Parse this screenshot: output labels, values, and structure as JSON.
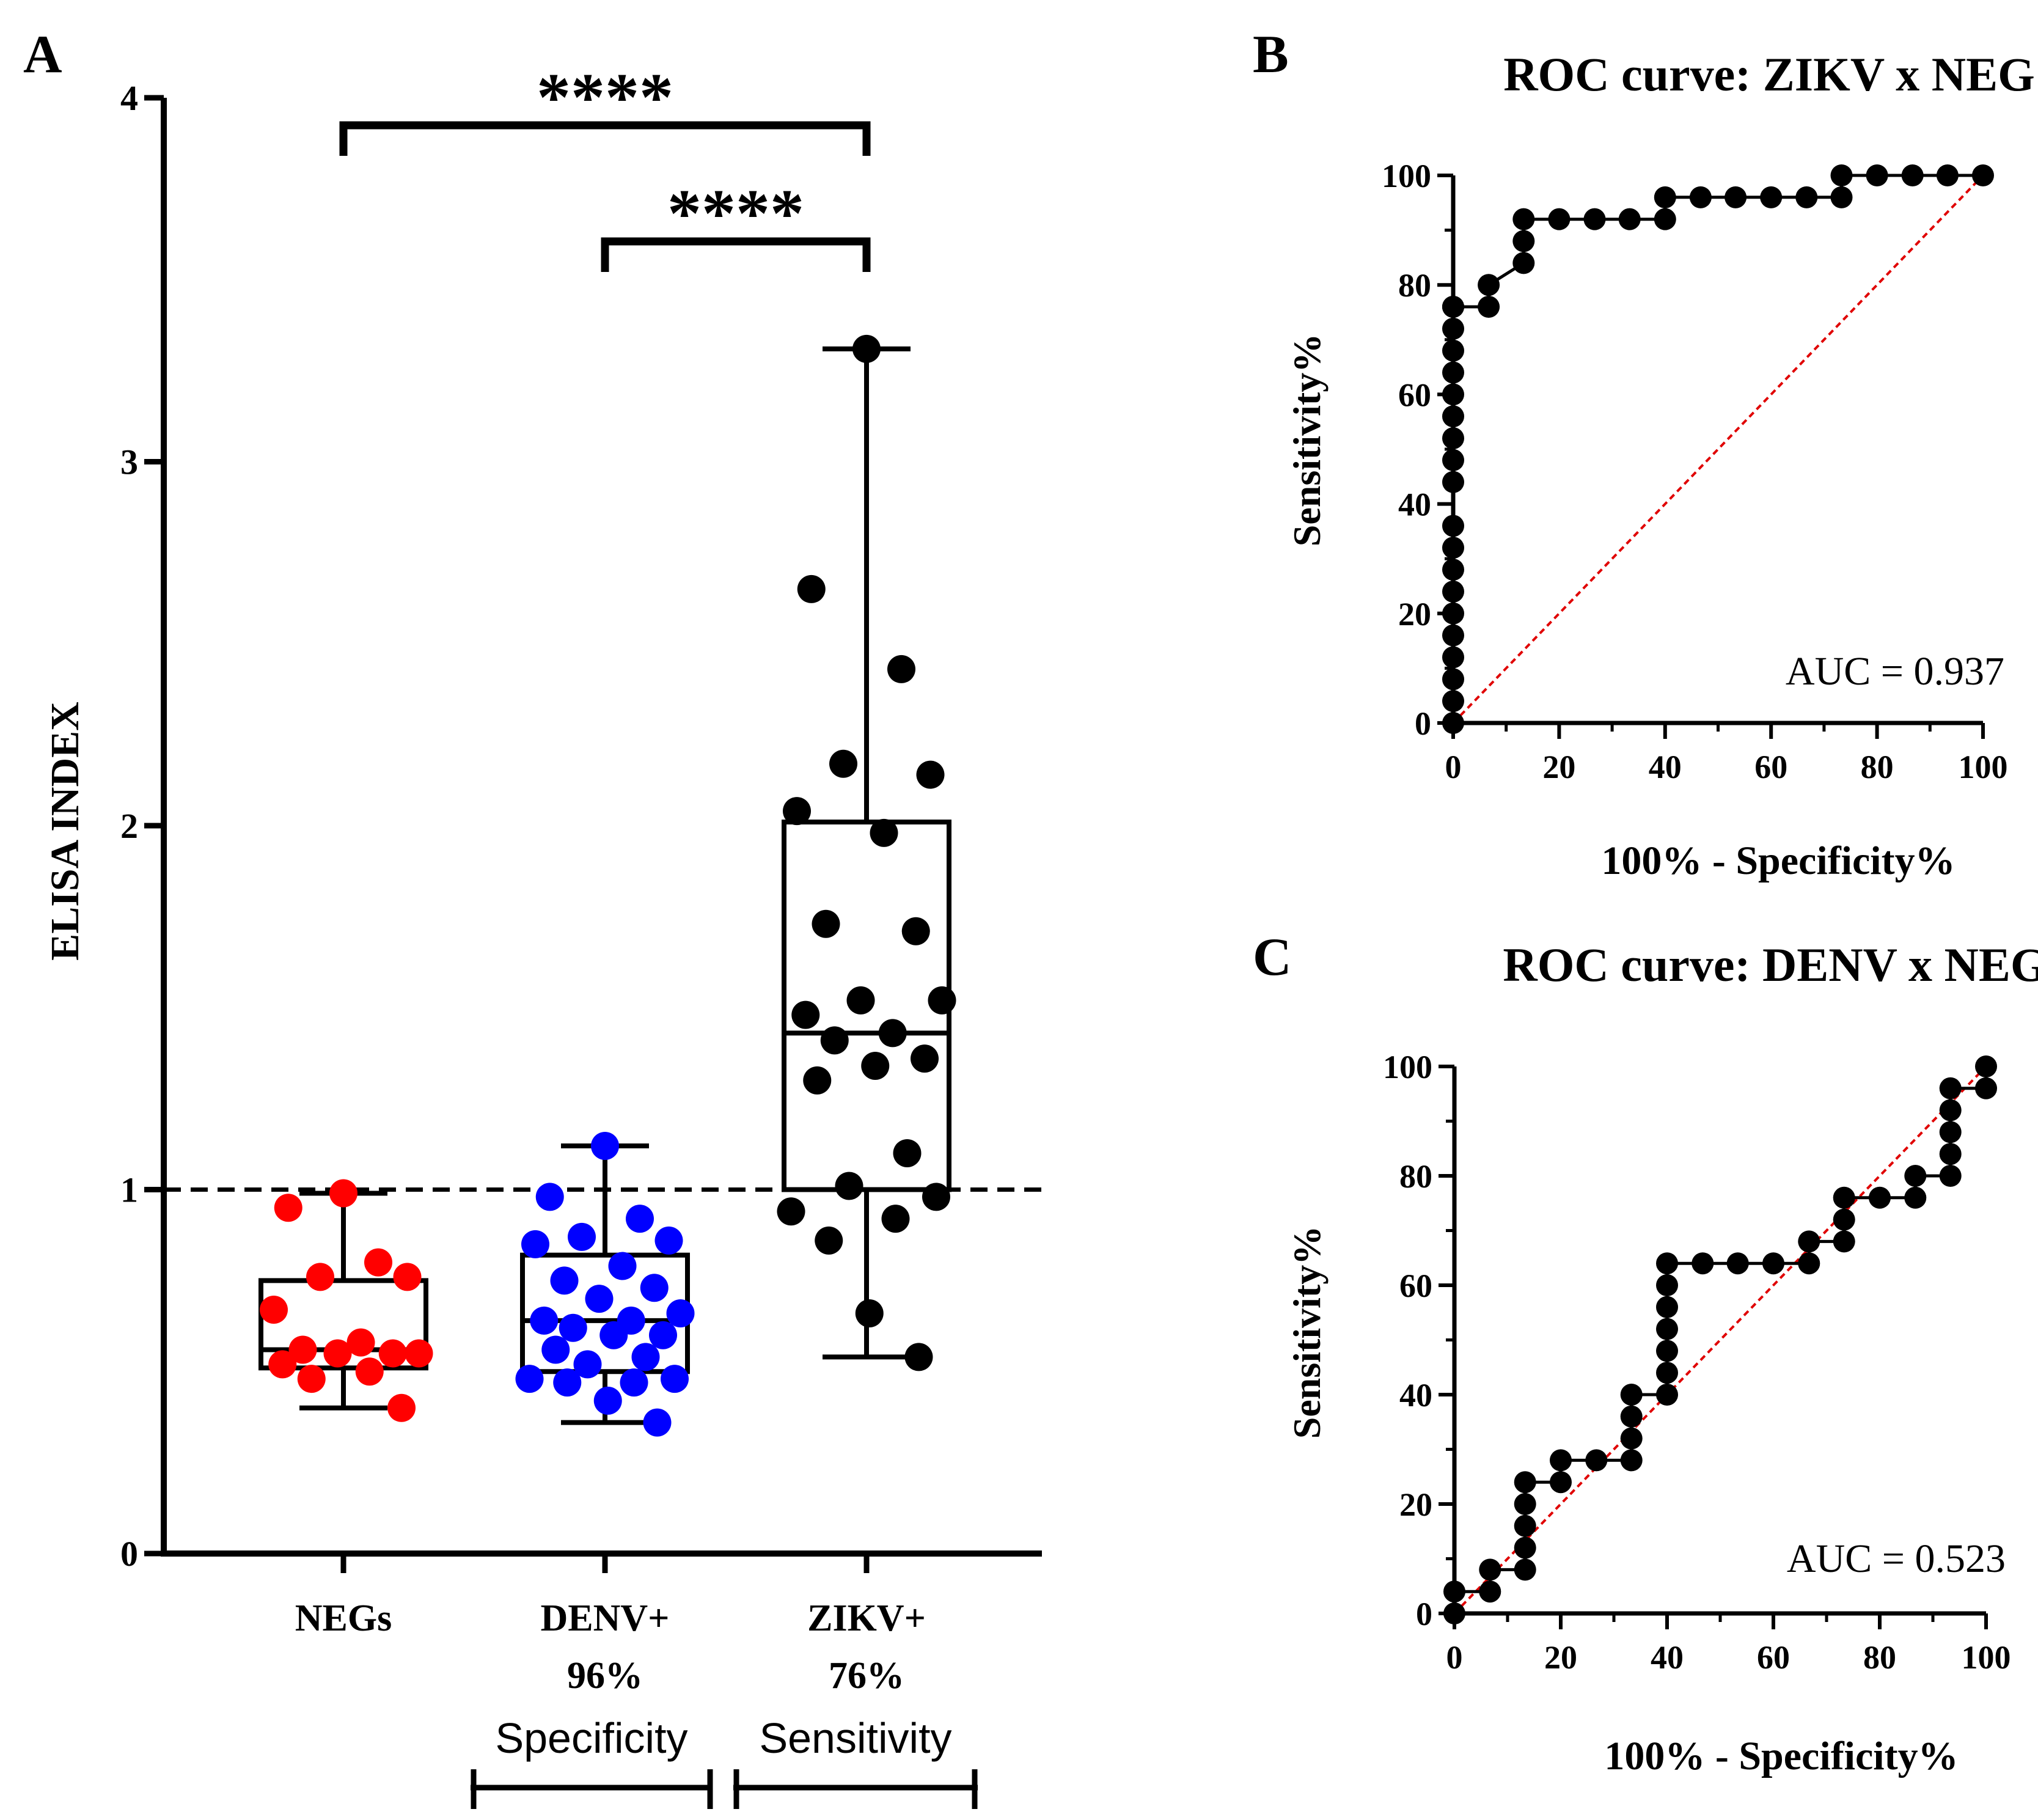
{
  "chart_data": [
    {
      "panel": "A",
      "type": "box",
      "title": "",
      "ylabel": "ELISA INDEX",
      "ylim": [
        0,
        4
      ],
      "yticks": [
        0,
        1,
        2,
        3,
        4
      ],
      "cutoff": 1,
      "groups": [
        {
          "name": "NEGs",
          "sublabel": "",
          "color": "#ff0000",
          "points": [
            0.99,
            0.95,
            0.8,
            0.76,
            0.76,
            0.67,
            0.58,
            0.56,
            0.55,
            0.55,
            0.55,
            0.52,
            0.5,
            0.48,
            0.4
          ],
          "box": {
            "q1": 0.51,
            "median": 0.56,
            "q3": 0.75,
            "min": 0.4,
            "max": 0.99
          }
        },
        {
          "name": "DENV+",
          "sublabel": "96%",
          "color": "#0000ff",
          "points": [
            1.12,
            0.98,
            0.92,
            0.87,
            0.86,
            0.85,
            0.79,
            0.75,
            0.73,
            0.7,
            0.66,
            0.64,
            0.64,
            0.62,
            0.6,
            0.6,
            0.56,
            0.54,
            0.52,
            0.48,
            0.48,
            0.47,
            0.47,
            0.42,
            0.36
          ],
          "box": {
            "q1": 0.5,
            "median": 0.64,
            "q3": 0.82,
            "min": 0.36,
            "max": 1.12
          }
        },
        {
          "name": "ZIKV+",
          "sublabel": "76%",
          "color": "#000000",
          "points": [
            3.31,
            2.65,
            2.43,
            2.17,
            2.14,
            2.04,
            1.98,
            1.73,
            1.71,
            1.52,
            1.52,
            1.48,
            1.43,
            1.41,
            1.36,
            1.34,
            1.3,
            1.1,
            1.01,
            0.98,
            0.94,
            0.92,
            0.86,
            0.66,
            0.54
          ],
          "box": {
            "q1": 1.0,
            "median": 1.43,
            "q3": 2.01,
            "min": 0.54,
            "max": 3.31
          }
        }
      ],
      "significance": [
        {
          "from": 0,
          "to": 2,
          "label": "****"
        },
        {
          "from": 1,
          "to": 2,
          "label": "****"
        }
      ],
      "annotations": {
        "specificity_label": "Specificity",
        "sensitivity_label": "Sensitivity"
      }
    },
    {
      "panel": "B",
      "type": "line",
      "title": "ROC curve: ZIKV x NEG",
      "xlabel": "100% - Specificity%",
      "ylabel": "Sensitivity%",
      "xlim": [
        0,
        100
      ],
      "ylim": [
        0,
        100
      ],
      "xticks": [
        0,
        20,
        40,
        60,
        80,
        100
      ],
      "yticks": [
        0,
        20,
        40,
        60,
        80,
        100
      ],
      "auc_label": "AUC = 0.937",
      "reference_line": "diagonal",
      "x": [
        0,
        0,
        0,
        0,
        0,
        0,
        0,
        0,
        0,
        0,
        0,
        0,
        0,
        0,
        0,
        0,
        0,
        0,
        0,
        0,
        0,
        6.7,
        6.7,
        13.3,
        13.3,
        13.3,
        20,
        26.7,
        33.3,
        40,
        40,
        46.7,
        53.3,
        60,
        66.7,
        73.3,
        73.3,
        80,
        86.7,
        93.3,
        100
      ],
      "y": [
        0,
        4,
        8,
        12,
        16,
        20,
        24,
        28,
        32,
        36,
        44,
        48,
        52,
        56,
        60,
        64,
        68,
        72,
        76,
        76,
        76,
        76,
        80,
        84,
        88,
        92,
        92,
        92,
        92,
        92,
        96,
        96,
        96,
        96,
        96,
        96,
        100,
        100,
        100,
        100,
        100
      ]
    },
    {
      "panel": "C",
      "type": "line",
      "title": "ROC curve: DENV x NEG",
      "xlabel": "100% - Specificity%",
      "ylabel": "Sensitivity%",
      "xlim": [
        0,
        100
      ],
      "ylim": [
        0,
        100
      ],
      "xticks": [
        0,
        20,
        40,
        60,
        80,
        100
      ],
      "yticks": [
        0,
        20,
        40,
        60,
        80,
        100
      ],
      "auc_label": "AUC = 0.523",
      "reference_line": "diagonal",
      "x": [
        0,
        0,
        6.7,
        6.7,
        13.3,
        13.3,
        13.3,
        13.3,
        13.3,
        20,
        20,
        26.7,
        33.3,
        33.3,
        33.3,
        33.3,
        40,
        40,
        40,
        40,
        40,
        40,
        40,
        46.7,
        53.3,
        60,
        66.7,
        66.7,
        73.3,
        73.3,
        73.3,
        80,
        86.7,
        86.7,
        93.3,
        93.3,
        93.3,
        93.3,
        93.3,
        100,
        100
      ],
      "y": [
        0,
        4,
        4,
        8,
        8,
        12,
        16,
        20,
        24,
        24,
        28,
        28,
        28,
        32,
        36,
        40,
        40,
        44,
        48,
        52,
        56,
        60,
        64,
        64,
        64,
        64,
        64,
        68,
        68,
        72,
        76,
        76,
        76,
        80,
        80,
        84,
        88,
        92,
        96,
        96,
        100
      ]
    }
  ],
  "panel_labels": {
    "a": "A",
    "b": "B",
    "c": "C"
  }
}
